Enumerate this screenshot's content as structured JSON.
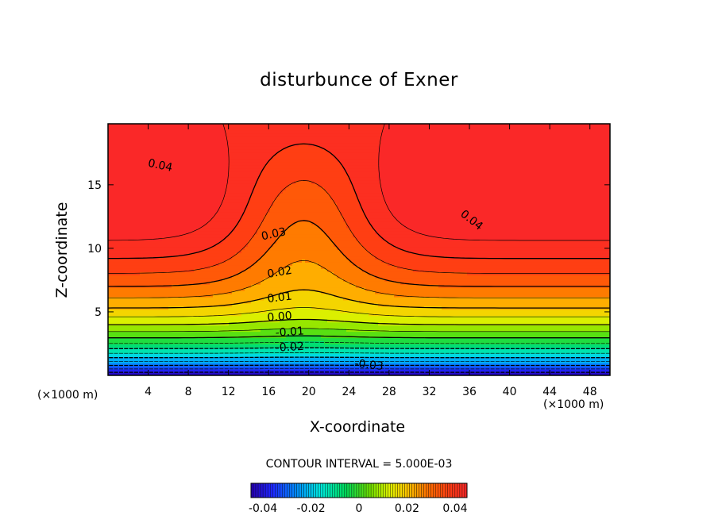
{
  "chart_data": {
    "type": "heatmap",
    "subtype": "filled-contour",
    "title": "disturbunce of Exner",
    "xlabel": "X-coordinate",
    "ylabel": "Z-coordinate",
    "x_unit": "(×1000 m)",
    "z_unit": "(×1000 m)",
    "xlim": [
      0,
      50
    ],
    "ylim": [
      0,
      19.8
    ],
    "x_ticks": [
      4,
      8,
      12,
      16,
      20,
      24,
      28,
      32,
      36,
      40,
      44,
      48
    ],
    "y_ticks": [
      5,
      10,
      15
    ],
    "contour_interval_text": "CONTOUR INTERVAL = 5.000E-03",
    "contour_interval": 0.005,
    "contour_labels": [
      "0.04",
      "0.04",
      "0.03",
      "0.02",
      "0.01",
      "0.00",
      "-0.01",
      "-0.02",
      "-0.03"
    ],
    "value_range": [
      -0.045,
      0.045
    ],
    "colorbar": {
      "ticks": [
        -0.04,
        -0.02,
        0,
        0.02,
        0.04
      ],
      "tick_labels": [
        "-0.04",
        "-0.02",
        "0",
        "0.02",
        "0.04"
      ],
      "colormap": "rainbow (blue → cyan → green → yellow → orange → red)"
    },
    "field_description": "Low values (≈ -0.045) near the bottom, increasing upward; red maxima ≈ 0.045 centred near z≈13 at x≈0–10 and x≈32–50; saddle near x≈20 where contours bow upward."
  }
}
